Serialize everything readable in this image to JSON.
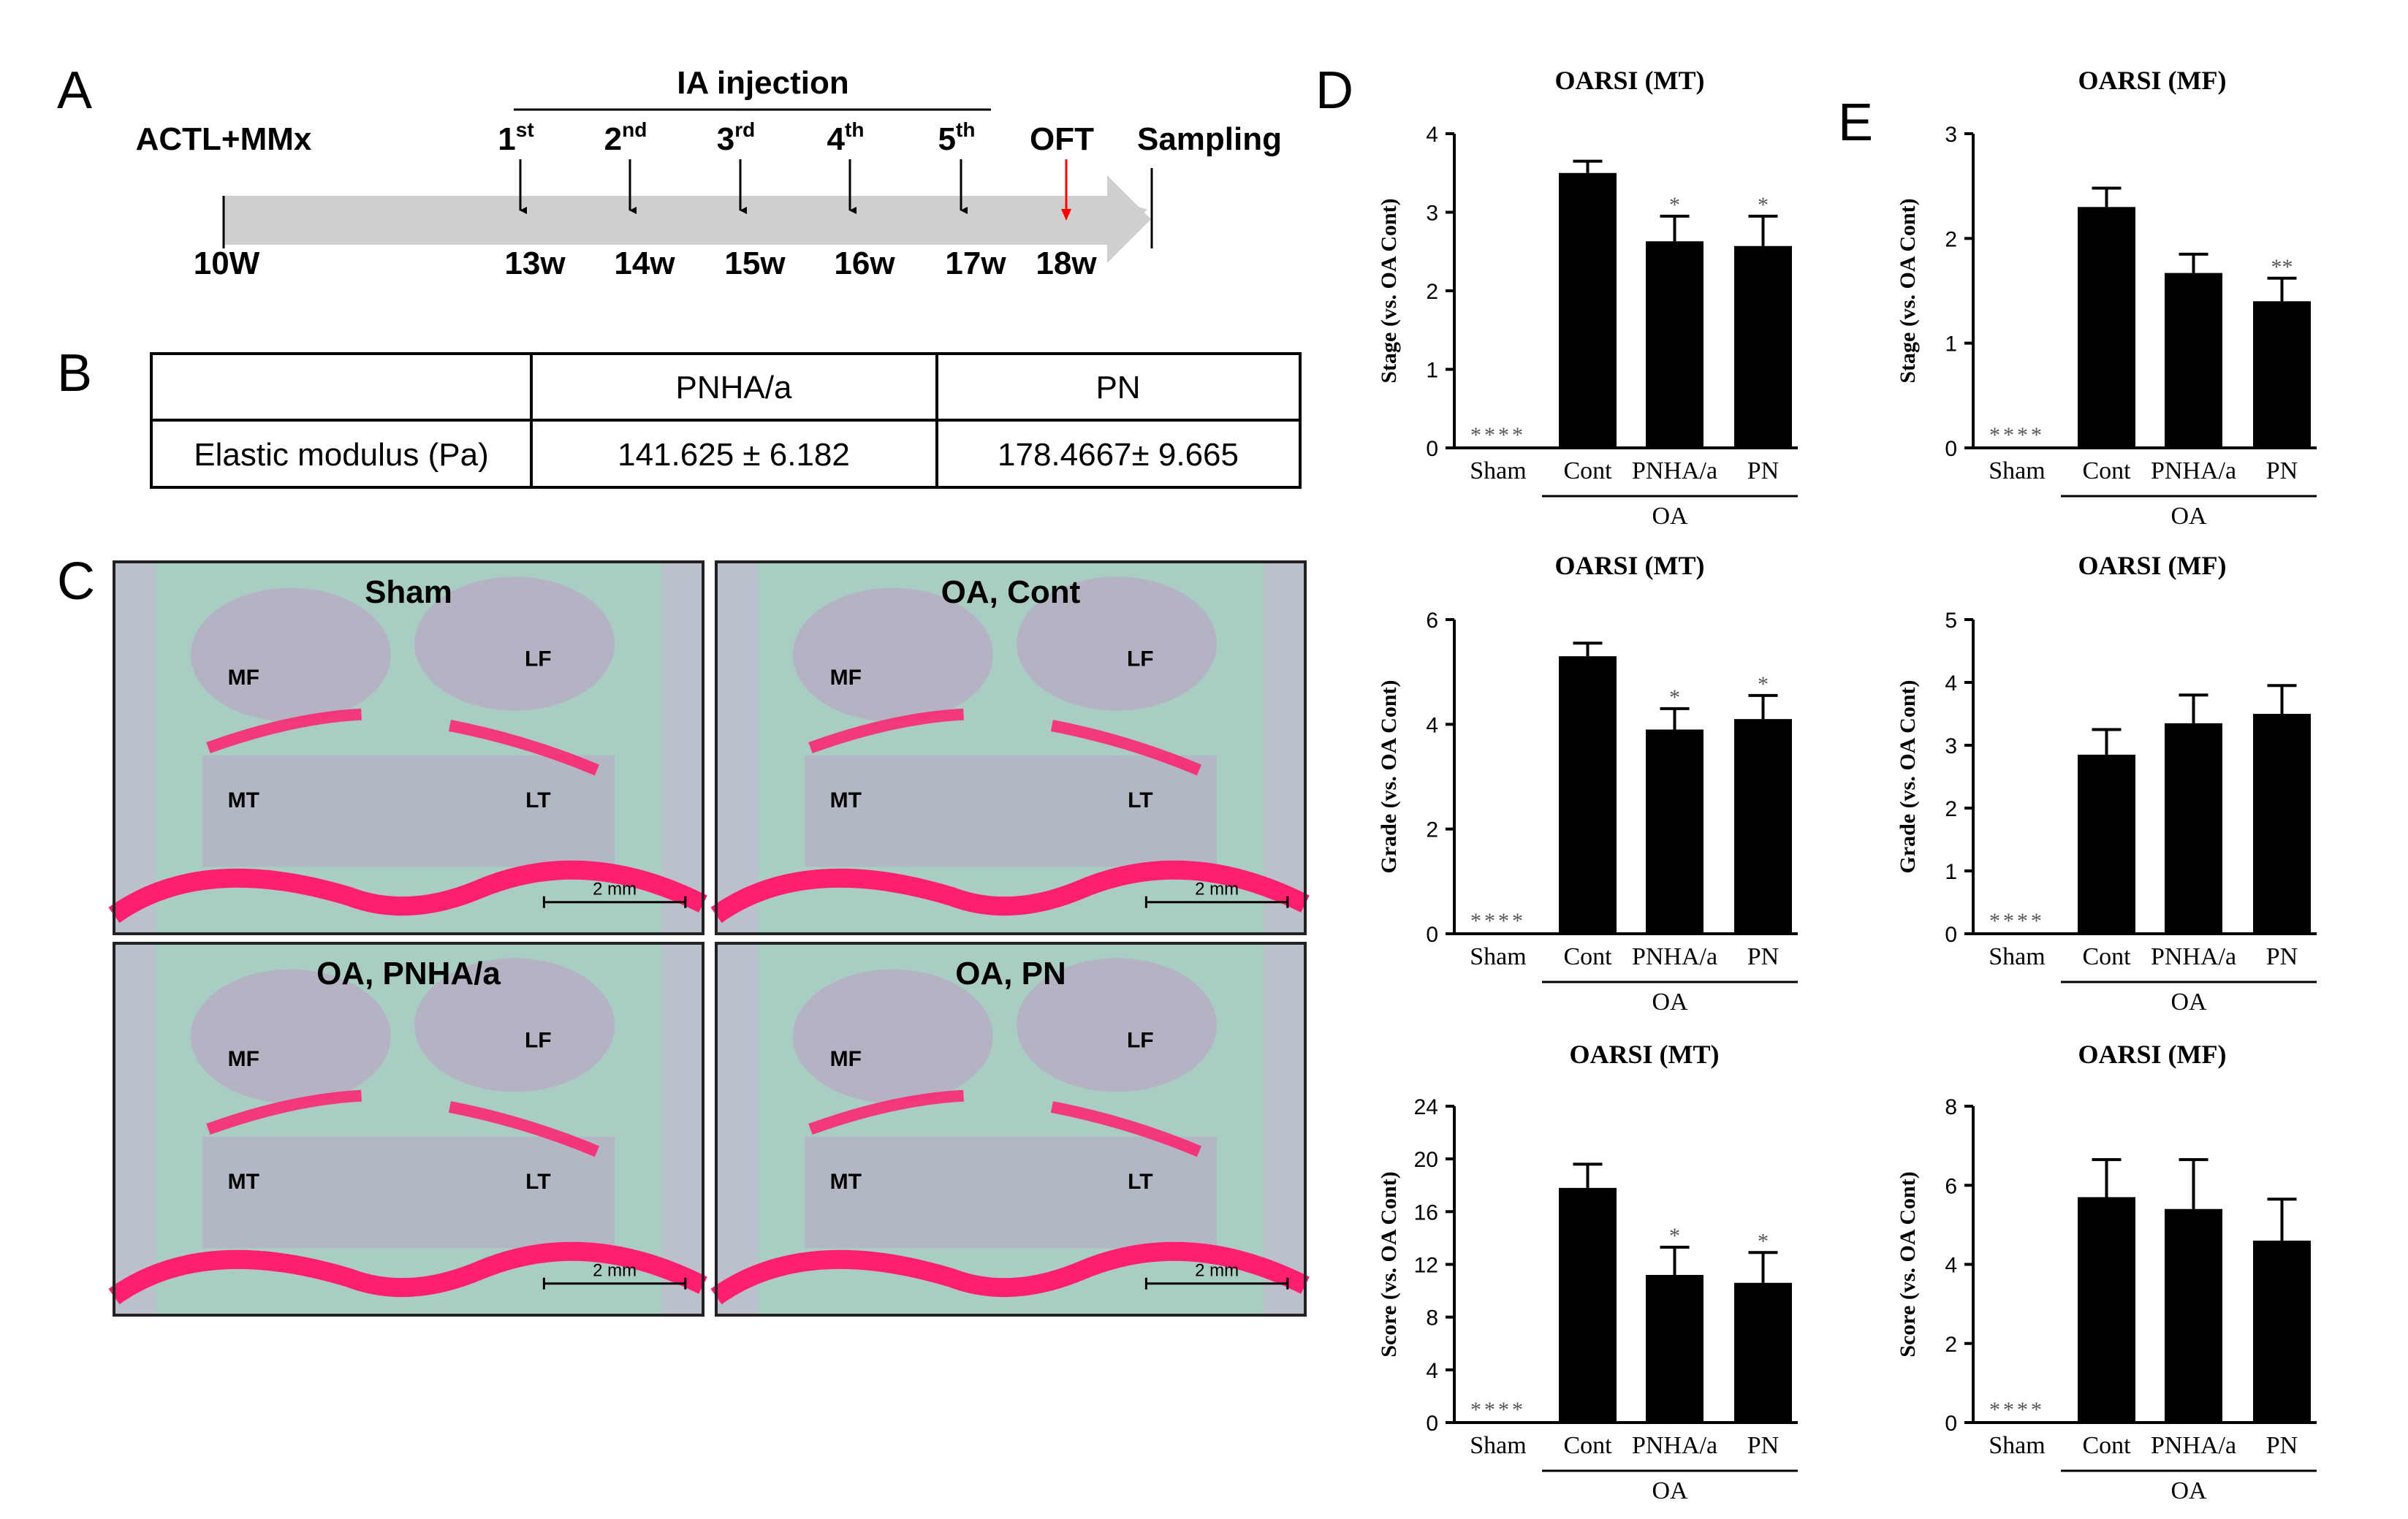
{
  "panel_labels": {
    "a": "A",
    "b": "B",
    "c": "C",
    "d": "D",
    "e": "E"
  },
  "timeline": {
    "injection_header": "IA injection",
    "start_label": "ACTL+MMx",
    "start_week": "10W",
    "injections": [
      {
        "num": "1",
        "sup": "st",
        "week": "13w"
      },
      {
        "num": "2",
        "sup": "nd",
        "week": "14w"
      },
      {
        "num": "3",
        "sup": "rd",
        "week": "15w"
      },
      {
        "num": "4",
        "sup": "th",
        "week": "16w"
      },
      {
        "num": "5",
        "sup": "th",
        "week": "17w"
      }
    ],
    "oft_label": "OFT",
    "oft_week": "18w",
    "end_label": "Sampling",
    "colors": {
      "bar": "#cfcfcf",
      "oft_arrow": "#ff0000",
      "arrow": "#000000"
    }
  },
  "table": {
    "headers": [
      "",
      "PNHA/a",
      "PN"
    ],
    "row_label": "Elastic modulus (Pa)",
    "values": [
      "141.625 ± 6.182",
      "178.4667± 9.665"
    ]
  },
  "histology": {
    "panels": [
      {
        "title": "Sham",
        "scale": "2 mm",
        "labels": [
          "MF",
          "LF",
          "MT",
          "LT"
        ]
      },
      {
        "title": "OA, Cont",
        "scale": "2 mm",
        "labels": [
          "MF",
          "LF",
          "MT",
          "LT"
        ]
      },
      {
        "title": "OA, PNHA/a",
        "scale": "2 mm",
        "labels": [
          "MF",
          "LF",
          "MT",
          "LT"
        ]
      },
      {
        "title": "OA, PN",
        "scale": "2 mm",
        "labels": [
          "MF",
          "LF",
          "MT",
          "LT"
        ]
      }
    ],
    "colors": {
      "cartilage": "#ff1f6e",
      "background": "#a9cdc2",
      "bone": "#b9a8c4"
    }
  },
  "chart_data": [
    {
      "type": "bar",
      "title": "OARSI (MT)",
      "ylabel": "Stage (vs. OA Cont)",
      "ylim": [
        0,
        4
      ],
      "yticks": [
        "0",
        "1",
        "2",
        "3",
        "4"
      ],
      "categories": [
        "Sham",
        "Cont",
        "PNHA/a",
        "PN"
      ],
      "group_label": "OA",
      "values": [
        0,
        3.5,
        2.63,
        2.57
      ],
      "errors": [
        0,
        0.15,
        0.32,
        0.38
      ],
      "significance": [
        "****",
        "",
        "*",
        "*"
      ]
    },
    {
      "type": "bar",
      "title": "OARSI (MF)",
      "ylabel": "Stage (vs. OA Cont)",
      "ylim": [
        0,
        3
      ],
      "yticks": [
        "0",
        "1",
        "2",
        "3"
      ],
      "categories": [
        "Sham",
        "Cont",
        "PNHA/a",
        "PN"
      ],
      "group_label": "OA",
      "values": [
        0,
        2.3,
        1.67,
        1.4
      ],
      "errors": [
        0,
        0.18,
        0.18,
        0.22
      ],
      "significance": [
        "****",
        "",
        "",
        "**"
      ]
    },
    {
      "type": "bar",
      "title": "OARSI (MT)",
      "ylabel": "Grade (vs. OA Cont)",
      "ylim": [
        0,
        6
      ],
      "yticks": [
        "0",
        "2",
        "4",
        "6"
      ],
      "categories": [
        "Sham",
        "Cont",
        "PNHA/a",
        "PN"
      ],
      "group_label": "OA",
      "values": [
        0,
        5.3,
        3.9,
        4.1
      ],
      "errors": [
        0,
        0.25,
        0.4,
        0.45
      ],
      "significance": [
        "****",
        "",
        "*",
        "*"
      ]
    },
    {
      "type": "bar",
      "title": "OARSI (MF)",
      "ylabel": "Grade (vs. OA Cont)",
      "ylim": [
        0,
        5
      ],
      "yticks": [
        "0",
        "1",
        "2",
        "3",
        "4",
        "5"
      ],
      "categories": [
        "Sham",
        "Cont",
        "PNHA/a",
        "PN"
      ],
      "group_label": "OA",
      "values": [
        0,
        2.85,
        3.35,
        3.5
      ],
      "errors": [
        0,
        0.4,
        0.45,
        0.45
      ],
      "significance": [
        "****",
        "",
        "",
        ""
      ]
    },
    {
      "type": "bar",
      "title": "OARSI (MT)",
      "ylabel": "Score (vs. OA Cont)",
      "ylim": [
        0,
        24
      ],
      "yticks": [
        "0",
        "4",
        "8",
        "12",
        "16",
        "20",
        "24"
      ],
      "categories": [
        "Sham",
        "Cont",
        "PNHA/a",
        "PN"
      ],
      "group_label": "OA",
      "values": [
        0,
        17.8,
        11.2,
        10.6
      ],
      "errors": [
        0,
        1.8,
        2.1,
        2.3
      ],
      "significance": [
        "****",
        "",
        "*",
        "*"
      ]
    },
    {
      "type": "bar",
      "title": "OARSI (MF)",
      "ylabel": "Score (vs. OA Cont)",
      "ylim": [
        0,
        8
      ],
      "yticks": [
        "0",
        "2",
        "4",
        "6",
        "8"
      ],
      "categories": [
        "Sham",
        "Cont",
        "PNHA/a",
        "PN"
      ],
      "group_label": "OA",
      "values": [
        0,
        5.7,
        5.4,
        4.6
      ],
      "errors": [
        0,
        0.95,
        1.25,
        1.05
      ],
      "significance": [
        "****",
        "",
        "",
        ""
      ]
    }
  ]
}
